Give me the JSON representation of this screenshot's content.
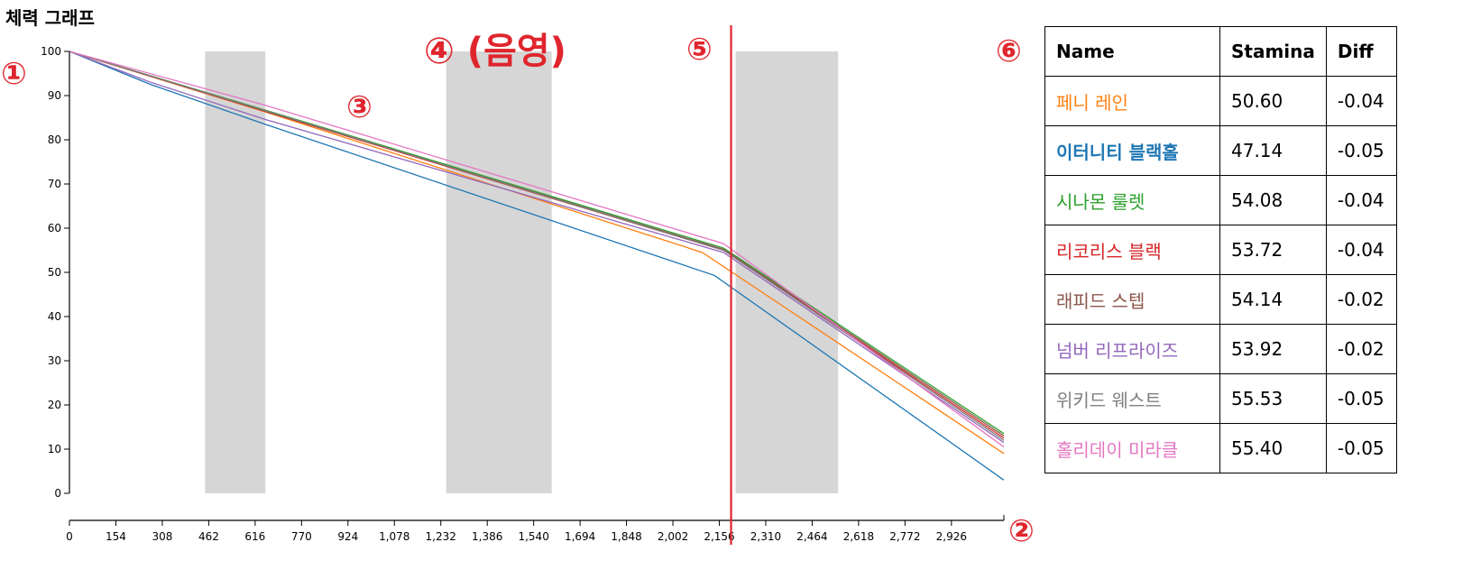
{
  "title": "체력 그래프",
  "markers": {
    "m1": "①",
    "m2": "②",
    "m3": "③",
    "m4": "④ (음영)",
    "m5": "⑤",
    "m6": "⑥"
  },
  "table": {
    "headers": [
      "Name",
      "Stamina",
      "Diff"
    ],
    "rows": [
      {
        "name": "페니 레인",
        "stamina": "50.60",
        "diff": "-0.04",
        "color": "#ff7f0e",
        "bold": false
      },
      {
        "name": "이터니티 블랙홀",
        "stamina": "47.14",
        "diff": "-0.05",
        "color": "#1f77b4",
        "bold": true
      },
      {
        "name": "시나몬 룰렛",
        "stamina": "54.08",
        "diff": "-0.04",
        "color": "#2ca02c",
        "bold": false
      },
      {
        "name": "리코리스 블랙",
        "stamina": "53.72",
        "diff": "-0.04",
        "color": "#d62728",
        "bold": false
      },
      {
        "name": "래피드 스텝",
        "stamina": "54.14",
        "diff": "-0.02",
        "color": "#8c564b",
        "bold": false
      },
      {
        "name": "넘버 리프라이즈",
        "stamina": "53.92",
        "diff": "-0.02",
        "color": "#9467bd",
        "bold": false
      },
      {
        "name": "위키드 웨스트",
        "stamina": "55.53",
        "diff": "-0.05",
        "color": "#7f7f7f",
        "bold": false
      },
      {
        "name": "홀리데이 미라클",
        "stamina": "55.40",
        "diff": "-0.05",
        "color": "#e377c2",
        "bold": false
      }
    ]
  },
  "chart_data": {
    "type": "line",
    "title": "체력 그래프",
    "xlabel": "",
    "ylabel": "",
    "xlim": [
      0,
      3100
    ],
    "ylim": [
      0,
      100
    ],
    "x_ticks": [
      0,
      154,
      308,
      462,
      616,
      770,
      924,
      1078,
      1232,
      1386,
      1540,
      1694,
      1848,
      2002,
      2156,
      2310,
      2464,
      2618,
      2772,
      2926
    ],
    "x_tick_labels": [
      "0",
      "154",
      "308",
      "462",
      "616",
      "770",
      "924",
      "1,078",
      "1,232",
      "1,386",
      "1,540",
      "1,694",
      "1,848",
      "2,002",
      "2,156",
      "2,310",
      "2,464",
      "2,618",
      "2,772",
      "2,926"
    ],
    "y_ticks": [
      0,
      10,
      20,
      30,
      40,
      50,
      60,
      70,
      80,
      90,
      100
    ],
    "shaded_regions": [
      [
        450,
        650
      ],
      [
        1250,
        1600
      ],
      [
        2210,
        2550
      ]
    ],
    "current_position": 2195,
    "series": [
      {
        "name": "페니 레인",
        "color": "#ff7f0e",
        "x": [
          0,
          650,
          2100,
          3100
        ],
        "y": [
          100,
          86.3,
          54.5,
          9
        ]
      },
      {
        "name": "이터니티 블랙홀",
        "color": "#1f77b4",
        "x": [
          0,
          270,
          650,
          2140,
          3100
        ],
        "y": [
          100,
          92.5,
          83.5,
          49.3,
          3
        ]
      },
      {
        "name": "시나몬 룰렛",
        "color": "#2ca02c",
        "x": [
          0,
          650,
          2170,
          3100
        ],
        "y": [
          100,
          86.7,
          55.5,
          13.5
        ]
      },
      {
        "name": "리코리스 블랙",
        "color": "#d62728",
        "x": [
          0,
          650,
          2170,
          3100
        ],
        "y": [
          100,
          86.4,
          55,
          12.5
        ]
      },
      {
        "name": "래피드 스텝",
        "color": "#8c564b",
        "x": [
          0,
          650,
          2170,
          3100
        ],
        "y": [
          100,
          86.5,
          55.2,
          13
        ]
      },
      {
        "name": "넘버 리프라이즈",
        "color": "#9467bd",
        "x": [
          0,
          270,
          650,
          2170,
          3100
        ],
        "y": [
          100,
          93,
          84.6,
          54.5,
          11.5
        ]
      },
      {
        "name": "위키드 웨스트",
        "color": "#7f7f7f",
        "x": [
          0,
          650,
          2170,
          3100
        ],
        "y": [
          100,
          86.6,
          55,
          12
        ]
      },
      {
        "name": "홀리데이 미라클",
        "color": "#e377c2",
        "x": [
          0,
          650,
          2170,
          3100
        ],
        "y": [
          100,
          87.8,
          56.5,
          10.5
        ]
      }
    ]
  }
}
